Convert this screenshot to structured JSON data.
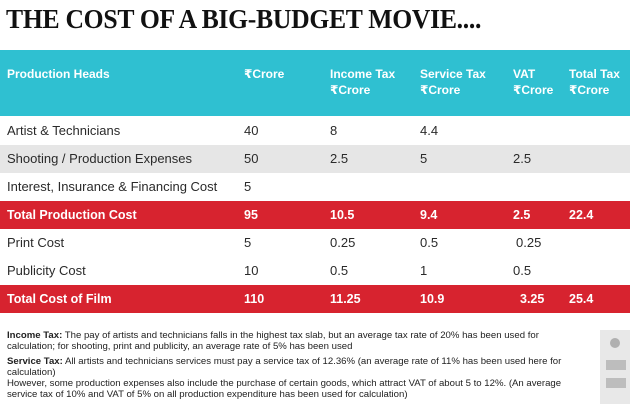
{
  "title": "THE COST OF A BIG-BUDGET MOVIE....",
  "headers": {
    "production_heads": "Production Heads",
    "crore": "₹Crore",
    "income_tax": "Income Tax",
    "income_tax_unit": "₹Crore",
    "service_tax": "Service Tax",
    "service_tax_unit": "₹Crore",
    "vat": "VAT",
    "vat_unit": "₹Crore",
    "total_tax": "Total Tax",
    "total_tax_unit": "₹Crore"
  },
  "rows": [
    {
      "head": "Artist & Technicians",
      "crore": "40",
      "income_tax": "8",
      "service_tax": "4.4",
      "vat": "",
      "total_tax": ""
    },
    {
      "head": "Shooting / Production Expenses",
      "crore": "50",
      "income_tax": "2.5",
      "service_tax": "5",
      "vat": "2.5",
      "total_tax": ""
    },
    {
      "head": "Interest, Insurance & Financing Cost",
      "crore": "5",
      "income_tax": "",
      "service_tax": "",
      "vat": "",
      "total_tax": ""
    },
    {
      "head": "Total Production Cost",
      "crore": "95",
      "income_tax": "10.5",
      "service_tax": "9.4",
      "vat": "2.5",
      "total_tax": "22.4"
    },
    {
      "head": "Print Cost",
      "crore": "5",
      "income_tax": "0.25",
      "service_tax": "0.5",
      "vat": "0.25",
      "total_tax": ""
    },
    {
      "head": "Publicity Cost",
      "crore": "10",
      "income_tax": "0.5",
      "service_tax": "1",
      "vat": "0.5",
      "total_tax": ""
    },
    {
      "head": "Total Cost of Film",
      "crore": "110",
      "income_tax": "11.25",
      "service_tax": "10.9",
      "vat": "3.25",
      "total_tax": "25.4"
    }
  ],
  "notes": {
    "income_tax_label": "Income Tax:",
    "income_tax_text": " The pay of artists and technicians falls in the highest tax slab, but an average tax rate of 20% has been used for calculation; for shooting, print and publicity, an average rate of 5% has been used",
    "service_tax_label": "Service Tax:",
    "service_tax_text": " All artists and technicians services must pay a service tax of 12.36% (an average rate of 11% has been used here for calculation)",
    "however_text": "However, some production expenses also include the purchase of certain goods, which attract VAT of about 5 to 12%. (An average service tax of 10% and VAT of 5% on all production expenditure has been used for calculation)"
  }
}
